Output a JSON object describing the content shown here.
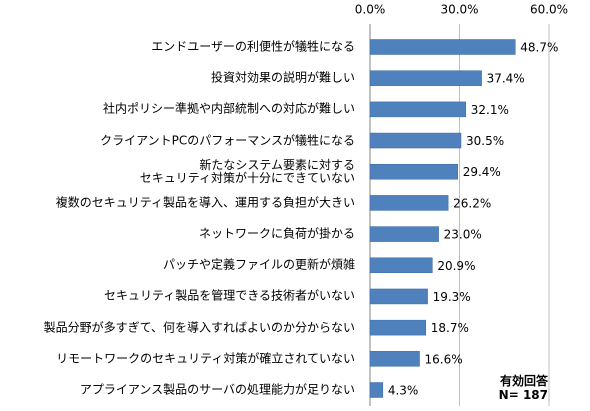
{
  "chart_data": {
    "type": "bar",
    "orientation": "horizontal",
    "categories": [
      "エンドユーザーの利便性が犠牲になる",
      "投資対効果の説明が難しい",
      "社内ポリシー準拠や内部統制への対応が難しい",
      "クライアントPCのパフォーマンスが犠牲になる",
      "新たなシステム要素に対する\nセキュリティ対策が十分にできていない",
      "複数のセキュリティ製品を導入、運用する負担が大きい",
      "ネットワークに負荷が掛かる",
      "パッチや定義ファイルの更新が煩雑",
      "セキュリティ製品を管理できる技術者がいない",
      "製品分野が多すぎて、何を導入すればよいのか分からない",
      "リモートワークのセキュリティ対策が確立されていない",
      "アプライアンス製品のサーバの処理能力が足りない"
    ],
    "values": [
      48.7,
      37.4,
      32.1,
      30.5,
      29.4,
      26.2,
      23.0,
      20.9,
      19.3,
      18.7,
      16.6,
      4.3
    ],
    "value_labels": [
      "48.7%",
      "37.4%",
      "32.1%",
      "30.5%",
      "29.4%",
      "26.2%",
      "23.0%",
      "20.9%",
      "19.3%",
      "18.7%",
      "16.6%",
      "4.3%"
    ],
    "color": "#4f81bd",
    "xlim": [
      0,
      60
    ],
    "xticks": [
      {
        "value": 0,
        "label": "0.0%"
      },
      {
        "value": 30,
        "label": "30.0%"
      },
      {
        "value": 60,
        "label": "60.0%"
      }
    ],
    "grid": true,
    "annotations": [
      "有効回答",
      "N= 187"
    ]
  }
}
